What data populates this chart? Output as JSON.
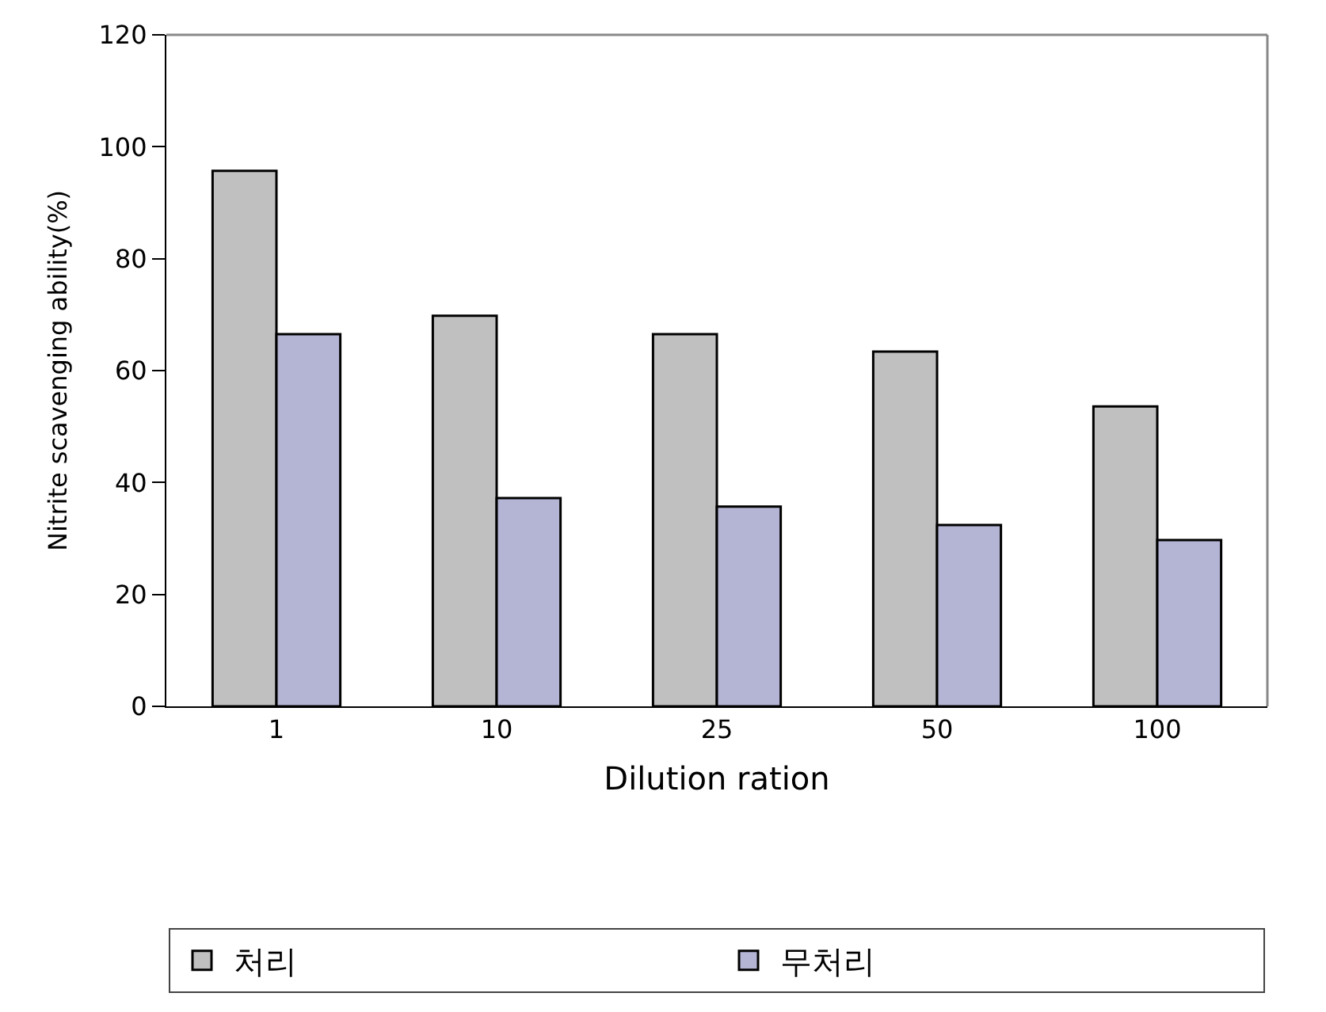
{
  "chart_data": {
    "type": "bar",
    "xlabel": "Dilution ration",
    "ylabel": "Nitrite scavenging ability(%)",
    "categories": [
      "1",
      "10",
      "25",
      "50",
      "100"
    ],
    "series": [
      {
        "name": "처리",
        "color": "#c0c0c0",
        "values": [
          95.7,
          69.8,
          66.5,
          63.4,
          53.6
        ]
      },
      {
        "name": "무처리",
        "color": "#b4b4d4",
        "values": [
          66.5,
          37.2,
          35.7,
          32.4,
          29.7
        ]
      }
    ],
    "ylim": [
      0,
      120
    ],
    "yticks": [
      0,
      20,
      40,
      60,
      80,
      100,
      120
    ],
    "legend": "bottom"
  }
}
